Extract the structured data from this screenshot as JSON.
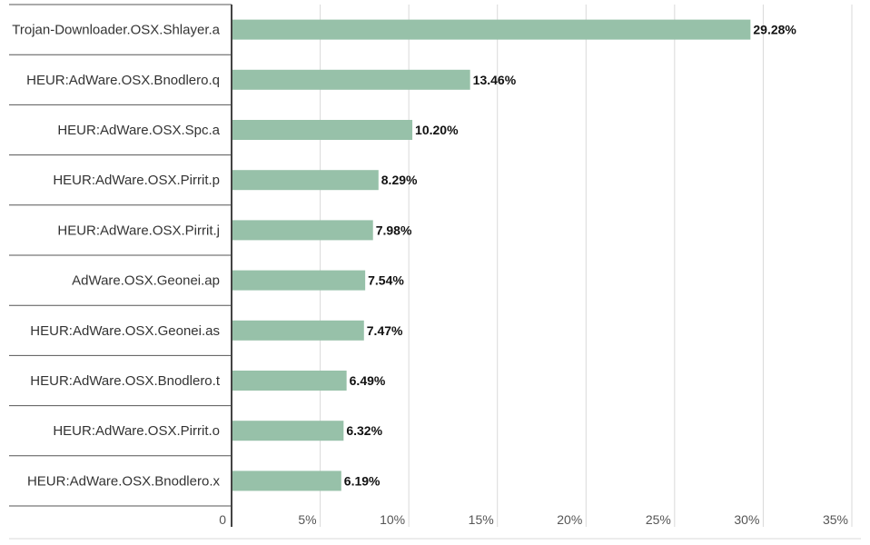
{
  "chart_data": {
    "type": "bar",
    "orientation": "horizontal",
    "categories": [
      "Trojan-Downloader.OSX.Shlayer.a",
      "HEUR:AdWare.OSX.Bnodlero.q",
      "HEUR:AdWare.OSX.Spc.a",
      "HEUR:AdWare.OSX.Pirrit.p",
      "HEUR:AdWare.OSX.Pirrit.j",
      "AdWare.OSX.Geonei.ap",
      "HEUR:AdWare.OSX.Geonei.as",
      "HEUR:AdWare.OSX.Bnodlero.t",
      "HEUR:AdWare.OSX.Pirrit.o",
      "HEUR:AdWare.OSX.Bnodlero.x"
    ],
    "values": [
      29.28,
      13.46,
      10.2,
      8.29,
      7.98,
      7.54,
      7.47,
      6.49,
      6.32,
      6.19
    ],
    "value_labels": [
      "29.28%",
      "13.46%",
      "10.20%",
      "8.29%",
      "7.98%",
      "7.54%",
      "7.47%",
      "6.49%",
      "6.32%",
      "6.19%"
    ],
    "xticks": [
      0,
      5,
      10,
      15,
      20,
      25,
      30,
      35
    ],
    "xtick_labels": [
      "0",
      "5%",
      "10%",
      "15%",
      "20%",
      "25%",
      "30%",
      "35%"
    ],
    "xlim": [
      0,
      35
    ],
    "title": "",
    "xlabel": "",
    "ylabel": "",
    "grid": "vertical",
    "legend": "none",
    "colors": {
      "bar": "#97c1a9",
      "grid": "#d9d9d9",
      "axis": "#444444",
      "separator": "#555555"
    }
  }
}
